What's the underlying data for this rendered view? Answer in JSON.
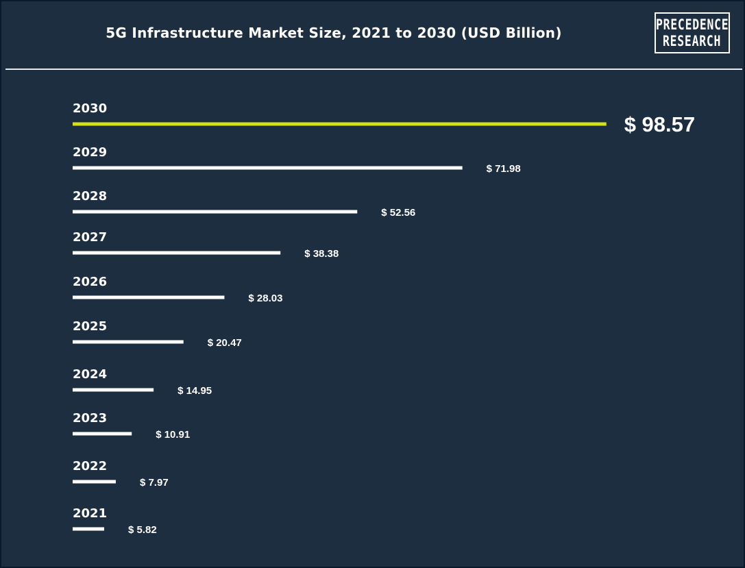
{
  "header": {
    "title": "5G Infrastructure Market Size, 2021 to 2030 (USD Billion)",
    "logo_line1": "PRECEDENCE",
    "logo_line2": "RESEARCH"
  },
  "colors": {
    "background": "#1e2e41",
    "bar_default": "#ffffff",
    "bar_highlight": "#d4e21a",
    "text": "#ffffff"
  },
  "chart_data": {
    "type": "bar",
    "orientation": "horizontal",
    "title": "5G Infrastructure Market Size, 2021 to 2030 (USD Billion)",
    "value_prefix": "$",
    "categories": [
      "2030",
      "2029",
      "2028",
      "2027",
      "2026",
      "2025",
      "2024",
      "2023",
      "2022",
      "2021"
    ],
    "values": [
      98.57,
      71.98,
      52.56,
      38.38,
      28.03,
      20.47,
      14.95,
      10.91,
      7.97,
      5.82
    ],
    "highlight_category": "2030",
    "grid": false,
    "legend": "none"
  }
}
